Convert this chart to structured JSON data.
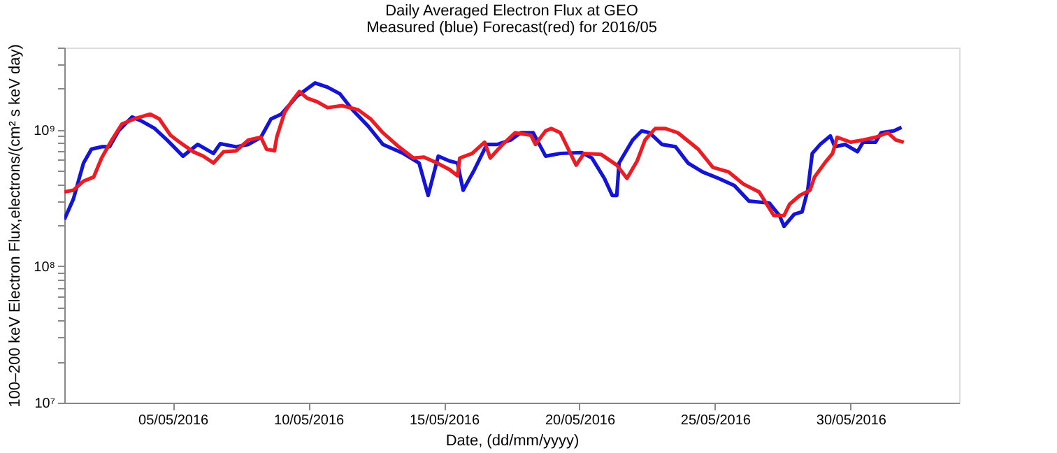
{
  "chart_data": {
    "type": "line",
    "title": "Daily Averaged Electron Flux at GEO",
    "subtitle": "Measured (blue) Forecast(red) for 2016/05",
    "xlabel": "Date, (dd/mm/yyyy)",
    "ylabel": "100–200 keV Electron Flux,electrons/(cm² s keV day)",
    "log": "y",
    "grid": false,
    "xlim": [
      "2016-05-01",
      "2016-06-03"
    ],
    "xticks": [
      {
        "value": "2016-05-05",
        "label": "05/05/2016"
      },
      {
        "value": "2016-05-10",
        "label": "10/05/2016"
      },
      {
        "value": "2016-05-15",
        "label": "15/05/2016"
      },
      {
        "value": "2016-05-20",
        "label": "20/05/2016"
      },
      {
        "value": "2016-05-25",
        "label": "25/05/2016"
      },
      {
        "value": "2016-05-30",
        "label": "30/05/2016"
      }
    ],
    "ylim": [
      10000000,
      4000000000
    ],
    "yticks": [
      {
        "value": 10000000,
        "label": "10⁷"
      },
      {
        "value": 20000000,
        "label": null
      },
      {
        "value": 30000000,
        "label": null
      },
      {
        "value": 40000000,
        "label": null
      },
      {
        "value": 50000000,
        "label": null
      },
      {
        "value": 60000000,
        "label": null
      },
      {
        "value": 70000000,
        "label": null
      },
      {
        "value": 80000000,
        "label": null
      },
      {
        "value": 90000000,
        "label": null
      },
      {
        "value": 100000000,
        "label": "10⁸"
      },
      {
        "value": 200000000,
        "label": null
      },
      {
        "value": 300000000,
        "label": null
      },
      {
        "value": 400000000,
        "label": null
      },
      {
        "value": 500000000,
        "label": null
      },
      {
        "value": 600000000,
        "label": null
      },
      {
        "value": 700000000,
        "label": null
      },
      {
        "value": 800000000,
        "label": null
      },
      {
        "value": 900000000,
        "label": null
      },
      {
        "value": 1000000000,
        "label": "10⁹"
      },
      {
        "value": 2000000000,
        "label": null
      },
      {
        "value": 3000000000,
        "label": null
      },
      {
        "value": 4000000000,
        "label": null
      }
    ],
    "series": [
      {
        "color": "#1414d8",
        "line_style": "solid",
        "x": [
          "2016-05-01T00:00",
          "2016-05-01T08:00",
          "2016-05-01T17:00",
          "2016-05-02T00:00",
          "2016-05-02T09:00",
          "2016-05-02T16:00",
          "2016-05-03T00:00",
          "2016-05-03T12:00",
          "2016-05-03T21:00",
          "2016-05-04T08:00",
          "2016-05-04T19:00",
          "2016-05-05T09:00",
          "2016-05-05T22:00",
          "2016-05-06T12:00",
          "2016-05-06T18:00",
          "2016-05-07T08:00",
          "2016-05-07T19:00",
          "2016-05-08T06:00",
          "2016-05-08T15:00",
          "2016-05-09T00:00",
          "2016-05-09T14:00",
          "2016-05-10T06:00",
          "2016-05-10T17:00",
          "2016-05-11T04:00",
          "2016-05-11T15:00",
          "2016-05-12T05:00",
          "2016-05-12T18:00",
          "2016-05-13T12:00",
          "2016-05-14T02:00",
          "2016-05-14T10:00",
          "2016-05-14T19:00",
          "2016-05-15T05:00",
          "2016-05-15T12:00",
          "2016-05-15T17:00",
          "2016-05-16T03:00",
          "2016-05-16T14:00",
          "2016-05-16T23:00",
          "2016-05-17T11:00",
          "2016-05-17T20:00",
          "2016-05-18T07:00",
          "2016-05-18T18:00",
          "2016-05-19T07:00",
          "2016-05-20T02:00",
          "2016-05-20T11:00",
          "2016-05-20T22:00",
          "2016-05-21T05:00",
          "2016-05-21T09:00",
          "2016-05-21T11:00",
          "2016-05-21T23:00",
          "2016-05-22T07:00",
          "2016-05-22T14:00",
          "2016-05-23T01:00",
          "2016-05-23T13:00",
          "2016-05-24T00:00",
          "2016-05-24T13:00",
          "2016-05-25T03:00",
          "2016-05-25T17:00",
          "2016-05-26T06:00",
          "2016-05-27T00:00",
          "2016-05-27T09:00",
          "2016-05-27T13:00",
          "2016-05-27T22:00",
          "2016-05-28T05:00",
          "2016-05-28T10:00",
          "2016-05-28T14:00",
          "2016-05-28T21:00",
          "2016-05-29T06:00",
          "2016-05-29T10:00",
          "2016-05-29T19:00",
          "2016-05-30T06:00",
          "2016-05-30T11:00",
          "2016-05-30T22:00",
          "2016-05-31T03:00",
          "2016-05-31T14:00",
          "2016-05-31T21:00"
        ],
        "values": [
          220000000.0,
          310000000.0,
          570000000.0,
          720000000.0,
          750000000.0,
          750000000.0,
          980000000.0,
          1240000000.0,
          1150000000.0,
          1020000000.0,
          840000000.0,
          640000000.0,
          780000000.0,
          670000000.0,
          790000000.0,
          750000000.0,
          780000000.0,
          880000000.0,
          1200000000.0,
          1300000000.0,
          1760000000.0,
          2200000000.0,
          2050000000.0,
          1830000000.0,
          1400000000.0,
          1060000000.0,
          780000000.0,
          670000000.0,
          570000000.0,
          330000000.0,
          640000000.0,
          590000000.0,
          570000000.0,
          360000000.0,
          510000000.0,
          780000000.0,
          780000000.0,
          840000000.0,
          950000000.0,
          950000000.0,
          640000000.0,
          670000000.0,
          680000000.0,
          620000000.0,
          440000000.0,
          330000000.0,
          330000000.0,
          570000000.0,
          840000000.0,
          980000000.0,
          950000000.0,
          780000000.0,
          750000000.0,
          570000000.0,
          490000000.0,
          440000000.0,
          390000000.0,
          300000000.0,
          290000000.0,
          235000000.0,
          196000000.0,
          240000000.0,
          250000000.0,
          360000000.0,
          670000000.0,
          780000000.0,
          900000000.0,
          750000000.0,
          780000000.0,
          690000000.0,
          810000000.0,
          810000000.0,
          950000000.0,
          980000000.0,
          1040000000.0
        ]
      },
      {
        "color": "#ec1c24",
        "line_style": "solid",
        "x": [
          "2016-05-01T00:00",
          "2016-05-01T08:00",
          "2016-05-01T17:00",
          "2016-05-02T02:00",
          "2016-05-02T09:00",
          "2016-05-02T18:00",
          "2016-05-03T03:00",
          "2016-05-03T14:00",
          "2016-05-04T04:00",
          "2016-05-04T12:00",
          "2016-05-04T22:00",
          "2016-05-05T06:00",
          "2016-05-05T18:00",
          "2016-05-06T03:00",
          "2016-05-06T12:00",
          "2016-05-06T21:00",
          "2016-05-07T08:00",
          "2016-05-07T19:00",
          "2016-05-08T06:00",
          "2016-05-08T11:00",
          "2016-05-08T18:00",
          "2016-05-08T20:00",
          "2016-05-09T03:00",
          "2016-05-09T09:00",
          "2016-05-09T16:00",
          "2016-05-09T23:00",
          "2016-05-10T08:00",
          "2016-05-10T17:00",
          "2016-05-11T06:00",
          "2016-05-11T20:00",
          "2016-05-12T07:00",
          "2016-05-12T18:00",
          "2016-05-13T08:00",
          "2016-05-13T21:00",
          "2016-05-14T06:00",
          "2016-05-14T18:00",
          "2016-05-15T05:00",
          "2016-05-15T12:00",
          "2016-05-15T14:00",
          "2016-05-16T01:00",
          "2016-05-16T12:00",
          "2016-05-16T17:00",
          "2016-05-17T04:00",
          "2016-05-17T15:00",
          "2016-05-18T05:00",
          "2016-05-18T09:00",
          "2016-05-18T18:00",
          "2016-05-18T23:00",
          "2016-05-19T07:00",
          "2016-05-19T21:00",
          "2016-05-20T04:00",
          "2016-05-20T19:00",
          "2016-05-21T09:00",
          "2016-05-21T18:00",
          "2016-05-22T03:00",
          "2016-05-22T10:00",
          "2016-05-22T19:00",
          "2016-05-23T04:00",
          "2016-05-23T15:00",
          "2016-05-24T09:00",
          "2016-05-24T22:00",
          "2016-05-25T12:00",
          "2016-05-26T01:00",
          "2016-05-26T15:00",
          "2016-05-27T04:00",
          "2016-05-27T13:00",
          "2016-05-27T18:00",
          "2016-05-28T03:00",
          "2016-05-28T12:00",
          "2016-05-28T16:00",
          "2016-05-29T01:00",
          "2016-05-29T08:00",
          "2016-05-29T12:00",
          "2016-05-30T00:00",
          "2016-05-30T11:00",
          "2016-05-30T22:00",
          "2016-05-31T09:00",
          "2016-05-31T16:00",
          "2016-05-31T23:00"
        ],
        "values": [
          350000000.0,
          360000000.0,
          420000000.0,
          450000000.0,
          620000000.0,
          840000000.0,
          1100000000.0,
          1200000000.0,
          1300000000.0,
          1200000000.0,
          910000000.0,
          810000000.0,
          690000000.0,
          640000000.0,
          570000000.0,
          690000000.0,
          700000000.0,
          840000000.0,
          880000000.0,
          720000000.0,
          700000000.0,
          880000000.0,
          1340000000.0,
          1600000000.0,
          1900000000.0,
          1700000000.0,
          1600000000.0,
          1450000000.0,
          1500000000.0,
          1400000000.0,
          1200000000.0,
          950000000.0,
          750000000.0,
          620000000.0,
          630000000.0,
          570000000.0,
          510000000.0,
          460000000.0,
          620000000.0,
          670000000.0,
          810000000.0,
          620000000.0,
          780000000.0,
          950000000.0,
          910000000.0,
          780000000.0,
          980000000.0,
          1020000000.0,
          950000000.0,
          550000000.0,
          670000000.0,
          660000000.0,
          550000000.0,
          440000000.0,
          590000000.0,
          840000000.0,
          1020000000.0,
          1020000000.0,
          950000000.0,
          720000000.0,
          530000000.0,
          490000000.0,
          400000000.0,
          350000000.0,
          235000000.0,
          235000000.0,
          285000000.0,
          330000000.0,
          360000000.0,
          450000000.0,
          570000000.0,
          670000000.0,
          880000000.0,
          810000000.0,
          840000000.0,
          880000000.0,
          950000000.0,
          840000000.0,
          810000000.0
        ]
      }
    ]
  }
}
